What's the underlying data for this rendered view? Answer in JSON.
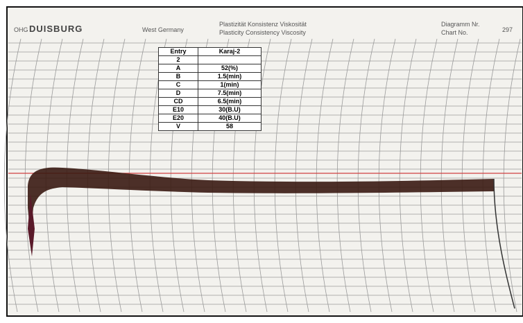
{
  "header": {
    "company_prefix": "OHG",
    "company": "DUISBURG",
    "country": "West Germany",
    "line_de": "Plastizität Konsistenz Viskosität",
    "line_en": "Plasticity Consistency Viscosity",
    "chart_no_de": "Diagramm Nr.",
    "chart_no_en": "Chart No.",
    "chart_no": "297"
  },
  "table": {
    "header": [
      "Entry",
      "Karaj-2"
    ],
    "rows": [
      [
        "2"
      ],
      [
        "A",
        "52(%)"
      ],
      [
        "B",
        "1.5(min)"
      ],
      [
        "C",
        "1(min)"
      ],
      [
        "D",
        "7.5(min)"
      ],
      [
        "CD",
        "6.5(min)"
      ],
      [
        "E10",
        "30(B.U)"
      ],
      [
        "E20",
        "40(B.U)"
      ],
      [
        "V",
        "58"
      ]
    ]
  }
}
